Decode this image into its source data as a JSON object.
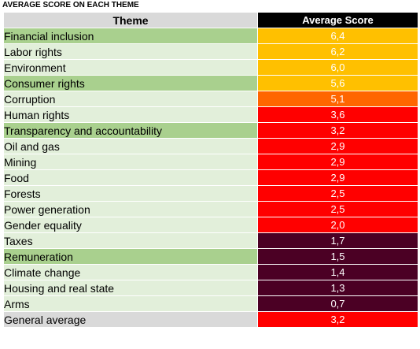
{
  "caption": "AVERAGE SCORE ON EACH THEME",
  "colors": {
    "theme_dark": "#a9d08e",
    "theme_light": "#e2efda",
    "header_theme_bg": "#d9d9d9",
    "header_score_bg": "#000000",
    "score_yellow": "#ffc000",
    "score_orange": "#ff6600",
    "score_red": "#ff0000",
    "score_maroon": "#4b0024"
  },
  "chart_data": {
    "type": "table",
    "title": "AVERAGE SCORE ON EACH THEME",
    "columns": [
      "Theme",
      "Average Score"
    ],
    "rows": [
      {
        "theme": "Financial inclusion",
        "score": "6,4",
        "value": 6.4,
        "row_color": "#a9d08e",
        "score_color": "#ffc000"
      },
      {
        "theme": "Labor rights",
        "score": "6,2",
        "value": 6.2,
        "row_color": "#e2efda",
        "score_color": "#ffc000"
      },
      {
        "theme": "Environment",
        "score": "6,0",
        "value": 6.0,
        "row_color": "#e2efda",
        "score_color": "#ffc000"
      },
      {
        "theme": "Consumer rights",
        "score": "5,6",
        "value": 5.6,
        "row_color": "#a9d08e",
        "score_color": "#ffc000"
      },
      {
        "theme": "Corruption",
        "score": "5,1",
        "value": 5.1,
        "row_color": "#e2efda",
        "score_color": "#ff6600"
      },
      {
        "theme": "Human rights",
        "score": "3,6",
        "value": 3.6,
        "row_color": "#e2efda",
        "score_color": "#ff0000"
      },
      {
        "theme": "Transparency and accountability",
        "score": "3,2",
        "value": 3.2,
        "row_color": "#a9d08e",
        "score_color": "#ff0000"
      },
      {
        "theme": "Oil and gas",
        "score": "2,9",
        "value": 2.9,
        "row_color": "#e2efda",
        "score_color": "#ff0000"
      },
      {
        "theme": "Mining",
        "score": "2,9",
        "value": 2.9,
        "row_color": "#e2efda",
        "score_color": "#ff0000"
      },
      {
        "theme": "Food",
        "score": "2,9",
        "value": 2.9,
        "row_color": "#e2efda",
        "score_color": "#ff0000"
      },
      {
        "theme": "Forests",
        "score": "2,5",
        "value": 2.5,
        "row_color": "#e2efda",
        "score_color": "#ff0000"
      },
      {
        "theme": "Power generation",
        "score": "2,5",
        "value": 2.5,
        "row_color": "#e2efda",
        "score_color": "#ff0000"
      },
      {
        "theme": "Gender equality",
        "score": "2,0",
        "value": 2.0,
        "row_color": "#e2efda",
        "score_color": "#ff0000"
      },
      {
        "theme": "Taxes",
        "score": "1,7",
        "value": 1.7,
        "row_color": "#e2efda",
        "score_color": "#4b0024"
      },
      {
        "theme": "Remuneration",
        "score": "1,5",
        "value": 1.5,
        "row_color": "#a9d08e",
        "score_color": "#4b0024"
      },
      {
        "theme": "Climate change",
        "score": "1,4",
        "value": 1.4,
        "row_color": "#e2efda",
        "score_color": "#4b0024"
      },
      {
        "theme": "Housing and real state",
        "score": "1,3",
        "value": 1.3,
        "row_color": "#e2efda",
        "score_color": "#4b0024"
      },
      {
        "theme": "Arms",
        "score": "0,7",
        "value": 0.7,
        "row_color": "#e2efda",
        "score_color": "#4b0024"
      }
    ],
    "footer": {
      "theme": "General average",
      "score": "3,2",
      "value": 3.2,
      "row_color": "#d9d9d9",
      "score_color": "#ff0000"
    }
  }
}
